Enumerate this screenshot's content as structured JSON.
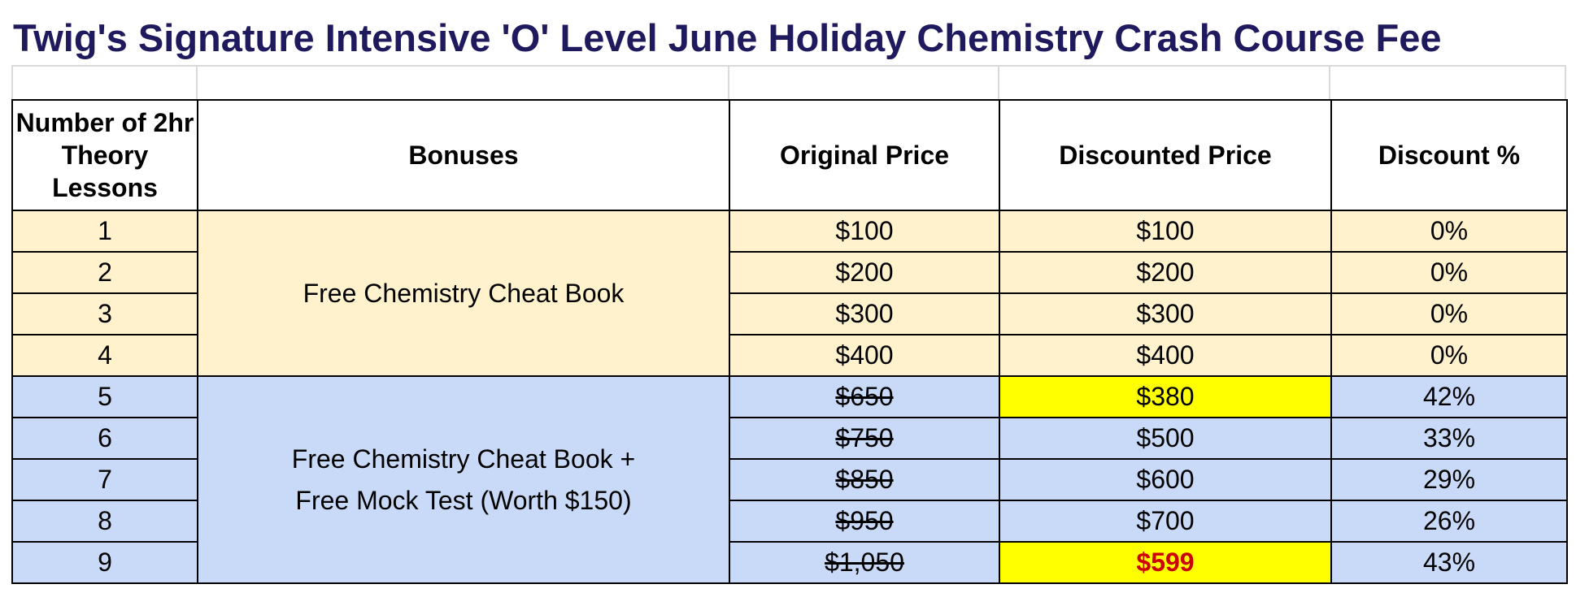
{
  "title": "Twig's Signature Intensive 'O' Level June Holiday Chemistry Crash Course Fee",
  "headers": {
    "lessons": "Number of 2hr Theory Lessons",
    "bonuses": "Bonuses",
    "original": "Original Price",
    "discounted": "Discounted Price",
    "discount_pct": "Discount %"
  },
  "bonus_tier1": "Free Chemistry Cheat Book",
  "bonus_tier2_line1": "Free Chemistry Cheat Book +",
  "bonus_tier2_line2": "Free Mock Test (Worth $150)",
  "rows": [
    {
      "lessons": "1",
      "original": "$100",
      "discounted": "$100",
      "discount": "0%"
    },
    {
      "lessons": "2",
      "original": "$200",
      "discounted": "$200",
      "discount": "0%"
    },
    {
      "lessons": "3",
      "original": "$300",
      "discounted": "$300",
      "discount": "0%"
    },
    {
      "lessons": "4",
      "original": "$400",
      "discounted": "$400",
      "discount": "0%"
    },
    {
      "lessons": "5",
      "original": "$650",
      "discounted": "$380",
      "discount": "42%"
    },
    {
      "lessons": "6",
      "original": "$750",
      "discounted": "$500",
      "discount": "33%"
    },
    {
      "lessons": "7",
      "original": "$850",
      "discounted": "$600",
      "discount": "29%"
    },
    {
      "lessons": "8",
      "original": "$950",
      "discounted": "$700",
      "discount": "26%"
    },
    {
      "lessons": "9",
      "original": "$1,050",
      "discounted": "$599",
      "discount": "43%"
    }
  ],
  "colors": {
    "title": "#1f1a5e",
    "tier1_fill": "#fff2cc",
    "tier2_fill": "#c9daf8",
    "highlight_fill": "#ffff00",
    "emphasis_text": "#cc0000"
  }
}
